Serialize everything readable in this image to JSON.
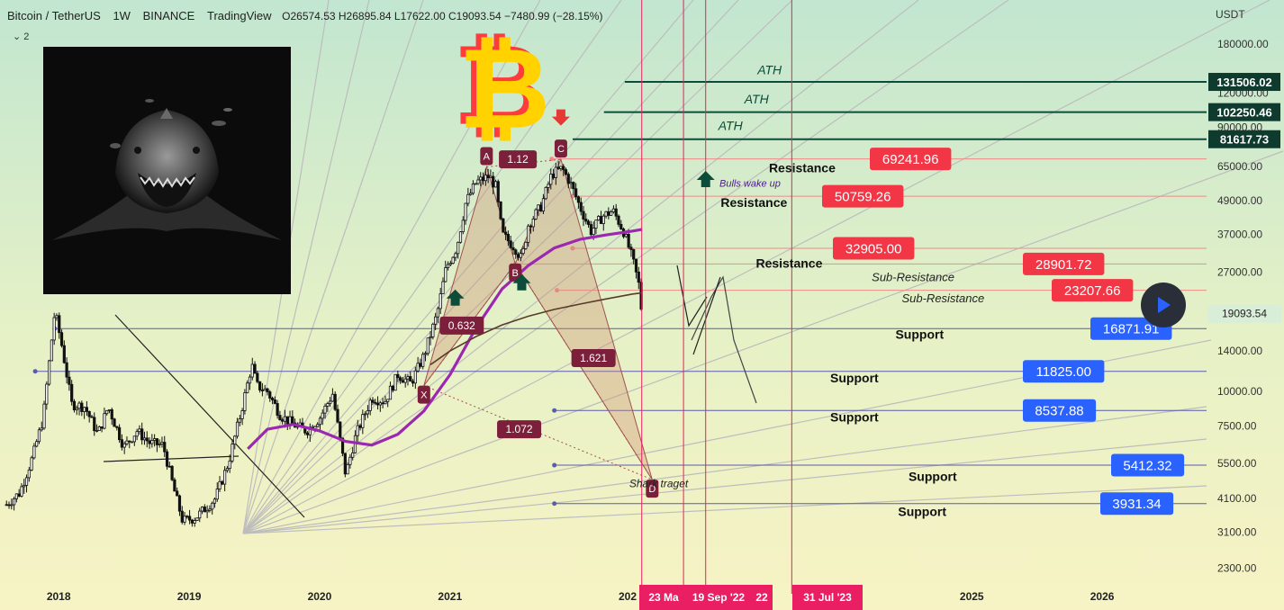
{
  "header": {
    "symbol": "Bitcoin / TetherUS",
    "interval": "1W",
    "exchange": "BINANCE",
    "platform": "TradingView",
    "ohlc": "O26574.53 H26895.84 L17622.00 C19093.54 −7480.99 (−28.15%)",
    "indicator_count": "⌄ 2"
  },
  "currency": "USDT",
  "colors": {
    "red": "#f23645",
    "blue": "#2962ff",
    "green": "#0b4d3a",
    "purple": "#9c27b0",
    "maroon": "#7b1f3a",
    "pink": "#e91e63"
  },
  "chart_data": {
    "type": "candlestick",
    "yscale": "log",
    "ylim": [
      2000,
      260000
    ],
    "xlim": [
      2017.55,
      2026.8
    ],
    "y_ticks": [
      180000,
      120000,
      90000,
      65000,
      49000,
      37000,
      27000,
      14000,
      10000,
      7500,
      5500,
      4100,
      3100,
      2300
    ],
    "y_tick_labels": [
      "180000.00",
      "120000.00",
      "90000.00",
      "65000.00",
      "49000.00",
      "37000.00",
      "27000.00",
      "14000.00",
      "10000.00",
      "7500.00",
      "5500.00",
      "4100.00",
      "3100.00",
      "2300.00"
    ],
    "x_ticks": [
      2018,
      2019,
      2020,
      2021,
      2024,
      2025,
      2026
    ],
    "x_tick_labels": [
      "2018",
      "2019",
      "2020",
      "2021",
      "2024",
      "2025",
      "2026"
    ],
    "last_price": {
      "value": 19093.54,
      "label": "19093.54"
    },
    "price_path": [
      [
        2017.6,
        3900
      ],
      [
        2017.7,
        4300
      ],
      [
        2017.8,
        5800
      ],
      [
        2017.88,
        8000
      ],
      [
        2017.94,
        14500
      ],
      [
        2017.97,
        19500
      ],
      [
        2018.02,
        15000
      ],
      [
        2018.1,
        9000
      ],
      [
        2018.2,
        8800
      ],
      [
        2018.3,
        7000
      ],
      [
        2018.38,
        8800
      ],
      [
        2018.5,
        6300
      ],
      [
        2018.6,
        7200
      ],
      [
        2018.7,
        6500
      ],
      [
        2018.8,
        6400
      ],
      [
        2018.88,
        4500
      ],
      [
        2018.95,
        3400
      ],
      [
        2019.05,
        3500
      ],
      [
        2019.2,
        4100
      ],
      [
        2019.3,
        5500
      ],
      [
        2019.4,
        8500
      ],
      [
        2019.48,
        12500
      ],
      [
        2019.52,
        10500
      ],
      [
        2019.6,
        10000
      ],
      [
        2019.7,
        8200
      ],
      [
        2019.8,
        7600
      ],
      [
        2019.9,
        7200
      ],
      [
        2020.0,
        8000
      ],
      [
        2020.1,
        9800
      ],
      [
        2020.2,
        5000
      ],
      [
        2020.28,
        7000
      ],
      [
        2020.4,
        9500
      ],
      [
        2020.5,
        9200
      ],
      [
        2020.6,
        11500
      ],
      [
        2020.7,
        10700
      ],
      [
        2020.8,
        13500
      ],
      [
        2020.9,
        19000
      ],
      [
        2020.97,
        28000
      ],
      [
        2021.05,
        33000
      ],
      [
        2021.12,
        48000
      ],
      [
        2021.2,
        57000
      ],
      [
        2021.3,
        60000
      ],
      [
        2021.35,
        55000
      ],
      [
        2021.4,
        37000
      ],
      [
        2021.5,
        33000
      ],
      [
        2021.55,
        30000
      ],
      [
        2021.6,
        40000
      ],
      [
        2021.7,
        47000
      ],
      [
        2021.78,
        61000
      ],
      [
        2021.86,
        64000
      ],
      [
        2021.92,
        57000
      ],
      [
        2022.0,
        46000
      ],
      [
        2022.08,
        38000
      ],
      [
        2022.17,
        43000
      ],
      [
        2022.25,
        45000
      ],
      [
        2022.33,
        38000
      ],
      [
        2022.4,
        30000
      ],
      [
        2022.45,
        24000
      ],
      [
        2022.47,
        19093
      ]
    ],
    "ma_purple": [
      [
        2019.45,
        6200
      ],
      [
        2019.6,
        7300
      ],
      [
        2019.8,
        7600
      ],
      [
        2020.0,
        7200
      ],
      [
        2020.2,
        6600
      ],
      [
        2020.4,
        6400
      ],
      [
        2020.6,
        7000
      ],
      [
        2020.8,
        8500
      ],
      [
        2021.0,
        11500
      ],
      [
        2021.2,
        17000
      ],
      [
        2021.4,
        23500
      ],
      [
        2021.6,
        28500
      ],
      [
        2021.8,
        33000
      ],
      [
        2022.0,
        35500
      ],
      [
        2022.2,
        36800
      ],
      [
        2022.4,
        38000
      ],
      [
        2022.47,
        38500
      ]
    ],
    "ma_brown": [
      [
        2020.85,
        12500
      ],
      [
        2021.0,
        14000
      ],
      [
        2021.2,
        15800
      ],
      [
        2021.4,
        17400
      ],
      [
        2021.6,
        18700
      ],
      [
        2021.8,
        19800
      ],
      [
        2022.0,
        20700
      ],
      [
        2022.2,
        21600
      ],
      [
        2022.4,
        22500
      ],
      [
        2022.47,
        22700
      ]
    ],
    "horizontal_levels": [
      {
        "label": "131506.02",
        "value": 131506.02,
        "from_x": 2022.34,
        "style": "ath_box"
      },
      {
        "label": "102250.46",
        "value": 102250.46,
        "from_x": 2022.18,
        "style": "ath_box"
      },
      {
        "label": "81617.73",
        "value": 81617.73,
        "from_x": 2021.94,
        "style": "ath_box"
      },
      {
        "label": "69241.96",
        "value": 69241.96,
        "from_x": 2021.78,
        "style": "red"
      },
      {
        "label": "50759.26",
        "value": 50759.26,
        "from_x": 2021.94,
        "style": "red"
      },
      {
        "label": "32905.00",
        "value": 32905.0,
        "from_x": 2021.94,
        "style": "red"
      },
      {
        "label": "28901.72",
        "value": 28901.72,
        "from_x": 2021.5,
        "style": "red"
      },
      {
        "label": "23207.66",
        "value": 23207.66,
        "from_x": 2021.82,
        "style": "red"
      },
      {
        "label": "16871.91",
        "value": 16871.91,
        "from_x": 2017.97,
        "style": "blue"
      },
      {
        "label": "11825.00",
        "value": 11825.0,
        "from_x": 2017.82,
        "style": "blue"
      },
      {
        "label": "8537.88",
        "value": 8537.88,
        "from_x": 2021.8,
        "style": "blue"
      },
      {
        "label": "5412.32",
        "value": 5412.32,
        "from_x": 2021.8,
        "style": "blue"
      },
      {
        "label": "3931.34",
        "value": 3931.34,
        "from_x": 2021.8,
        "style": "blue"
      }
    ],
    "text_annotations": [
      {
        "text": "ATH",
        "x": 2023.45,
        "y": 140000,
        "style": "ath"
      },
      {
        "text": "ATH",
        "x": 2023.35,
        "y": 110000,
        "style": "ath"
      },
      {
        "text": "ATH",
        "x": 2023.15,
        "y": 88000,
        "style": "ath"
      },
      {
        "text": "Resistance",
        "x": 2023.7,
        "y": 62000,
        "style": "bold"
      },
      {
        "text": "Bulls wake up",
        "x": 2023.3,
        "y": 55000,
        "style": "italic"
      },
      {
        "text": "Resistance",
        "x": 2023.33,
        "y": 46500,
        "style": "bold"
      },
      {
        "text": "Resistance",
        "x": 2023.6,
        "y": 28000,
        "style": "bold"
      },
      {
        "text": "Sub-Resistance",
        "x": 2024.55,
        "y": 25000,
        "style": "sub"
      },
      {
        "text": "Sub-Resistance",
        "x": 2024.78,
        "y": 21000,
        "style": "sub"
      },
      {
        "text": "Support",
        "x": 2024.6,
        "y": 15500,
        "style": "bold"
      },
      {
        "text": "Support",
        "x": 2024.1,
        "y": 10800,
        "style": "bold"
      },
      {
        "text": "Support",
        "x": 2024.1,
        "y": 7800,
        "style": "bold"
      },
      {
        "text": "Support",
        "x": 2024.7,
        "y": 4750,
        "style": "bold"
      },
      {
        "text": "Support",
        "x": 2024.62,
        "y": 3550,
        "style": "bold"
      },
      {
        "text": "Shark traget",
        "x": 2022.6,
        "y": 4500,
        "style": "italic_small"
      }
    ],
    "pattern_points": [
      {
        "name": "X",
        "x": 2020.8,
        "y": 10500
      },
      {
        "name": "A",
        "x": 2021.28,
        "y": 64800
      },
      {
        "name": "B",
        "x": 2021.5,
        "y": 29000
      },
      {
        "name": "C",
        "x": 2021.85,
        "y": 69000
      },
      {
        "name": "D",
        "x": 2022.55,
        "y": 4800
      }
    ],
    "ratios": [
      {
        "label": "1.12",
        "x": 2021.52,
        "y": 69000
      },
      {
        "label": "0.632",
        "x": 2021.09,
        "y": 17300
      },
      {
        "label": "1.621",
        "x": 2022.1,
        "y": 13200
      },
      {
        "label": "1.072",
        "x": 2021.53,
        "y": 7300
      }
    ],
    "arrow_markers": [
      {
        "dir": "down",
        "x": 2021.28,
        "y": 94000,
        "color": "red"
      },
      {
        "dir": "down",
        "x": 2021.85,
        "y": 97000,
        "color": "red"
      },
      {
        "dir": "up",
        "x": 2021.04,
        "y": 22000,
        "color": "green"
      },
      {
        "dir": "up",
        "x": 2021.55,
        "y": 25000,
        "color": "green"
      },
      {
        "dir": "up",
        "x": 2022.96,
        "y": 59000,
        "color": "green"
      }
    ],
    "vertical_lines": [
      2022.47,
      2022.79,
      2022.96,
      2023.62
    ],
    "date_labels": [
      {
        "text": "23 Ma",
        "x": 2022.4
      },
      {
        "text": "19 Sep '22",
        "x": 2022.79
      },
      {
        "text": "22",
        "x": 2023.05
      },
      {
        "text": "31 Jul '23",
        "x": 2023.62
      }
    ]
  }
}
